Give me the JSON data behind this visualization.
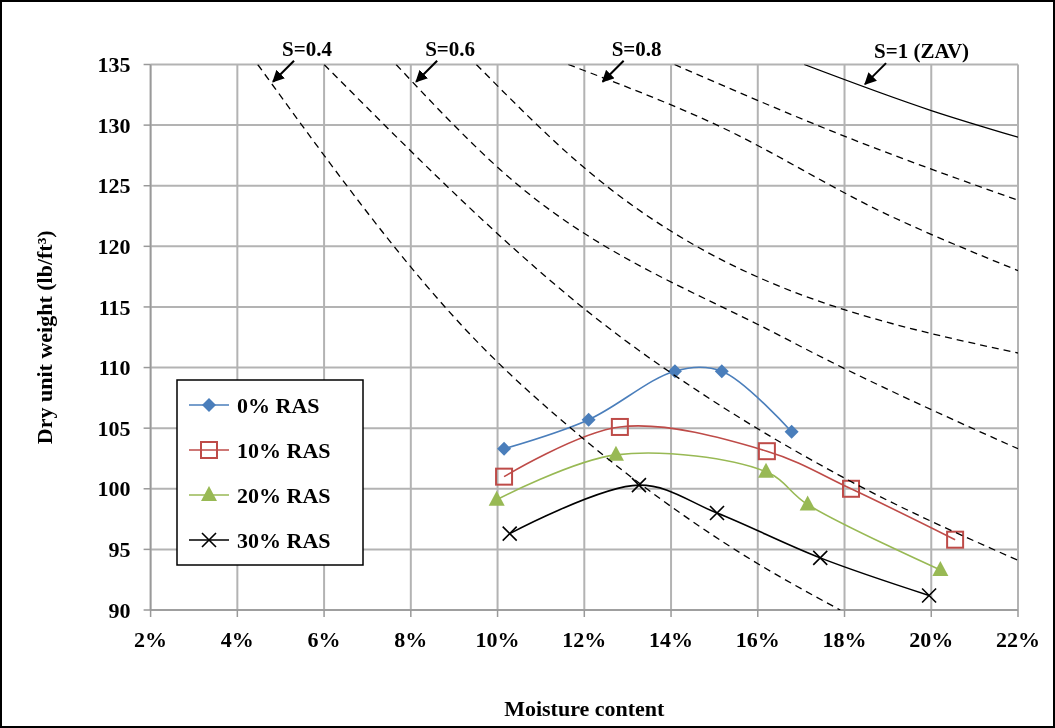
{
  "chart_data": {
    "type": "line",
    "xlabel": "Moisture content",
    "ylabel": "Dry unit weight (lb/ft³)",
    "xlim": [
      2,
      22
    ],
    "xticks": [
      {
        "value": 2,
        "label": "2%"
      },
      {
        "value": 4,
        "label": "4%"
      },
      {
        "value": 6,
        "label": "6%"
      },
      {
        "value": 8,
        "label": "8%"
      },
      {
        "value": 10,
        "label": "10%"
      },
      {
        "value": 12,
        "label": "12%"
      },
      {
        "value": 14,
        "label": "14%"
      },
      {
        "value": 16,
        "label": "16%"
      },
      {
        "value": 18,
        "label": "18%"
      },
      {
        "value": 20,
        "label": "20%"
      },
      {
        "value": 22,
        "label": "22%"
      }
    ],
    "ylim": [
      90,
      135
    ],
    "yticks": [
      90,
      95,
      100,
      105,
      110,
      115,
      120,
      125,
      130,
      135
    ],
    "grid": true,
    "legend": "left",
    "series": [
      {
        "name": "0% RAS",
        "color": "#4a7ebb",
        "marker": "diamond",
        "line_style": "solid",
        "x": [
          10.15,
          12.1,
          14.09,
          15.17,
          16.78
        ],
        "values": [
          103.3,
          105.7,
          109.7,
          109.7,
          104.7
        ]
      },
      {
        "name": "10% RAS",
        "color": "#be4b48",
        "marker": "square",
        "line_style": "solid",
        "x": [
          10.15,
          12.82,
          16.21,
          18.15,
          20.55
        ],
        "values": [
          101.0,
          105.1,
          103.1,
          100.0,
          95.8
        ]
      },
      {
        "name": "20% RAS",
        "color": "#98b954",
        "marker": "triangle",
        "line_style": "solid",
        "x": [
          9.98,
          12.73,
          16.19,
          17.15,
          20.21
        ],
        "values": [
          99.1,
          102.8,
          101.4,
          98.7,
          93.3
        ]
      },
      {
        "name": "30% RAS",
        "color": "#000000",
        "marker": "cross",
        "line_style": "solid",
        "x": [
          10.28,
          13.26,
          15.06,
          17.44,
          19.95
        ],
        "values": [
          96.3,
          100.3,
          98.0,
          94.3,
          91.2
        ]
      },
      {
        "color": "#000000",
        "marker": "none",
        "line_style": "dashed",
        "x": [
          4.47,
          9.62,
          11.92,
          13.07,
          15.6,
          17.9
        ],
        "values": [
          135,
          111.8,
          104.3,
          101.0,
          94.7,
          90
        ]
      },
      {
        "color": "#000000",
        "marker": "none",
        "line_style": "dashed",
        "x": [
          6.0,
          12.92,
          14.69,
          17.99,
          22
        ],
        "values": [
          135,
          112.3,
          107.9,
          100.9,
          94.1
        ]
      },
      {
        "color": "#000000",
        "marker": "none",
        "line_style": "dashed",
        "x": [
          7.66,
          10.07,
          16.69,
          22
        ],
        "values": [
          135,
          126.3,
          112.3,
          103.3
        ]
      },
      {
        "color": "#000000",
        "marker": "none",
        "line_style": "dashed",
        "x": [
          9.51,
          11.96,
          22
        ],
        "values": [
          135,
          126.6,
          111.2
        ]
      },
      {
        "color": "#000000",
        "marker": "none",
        "line_style": "dashed",
        "x": [
          11.63,
          15.0,
          19.0,
          22
        ],
        "values": [
          135,
          130.1,
          122.6,
          118.0
        ]
      },
      {
        "color": "#000000",
        "marker": "none",
        "line_style": "dashed",
        "x": [
          14.08,
          18.06,
          22
        ],
        "values": [
          135,
          129.0,
          123.8
        ]
      },
      {
        "color": "#000000",
        "marker": "none",
        "line_style": "solid",
        "x": [
          17.07,
          20,
          22
        ],
        "values": [
          135,
          131.2,
          129.0
        ]
      }
    ],
    "annotations": [
      {
        "text": "S=0.4",
        "x": 4.8,
        "y": 133.5
      },
      {
        "text": "S=0.6",
        "x": 8.1,
        "y": 133.5
      },
      {
        "text": "S=0.8",
        "x": 12.4,
        "y": 133.5
      },
      {
        "text": "S=1 (ZAV)",
        "x": 18.45,
        "y": 133.3
      }
    ]
  }
}
